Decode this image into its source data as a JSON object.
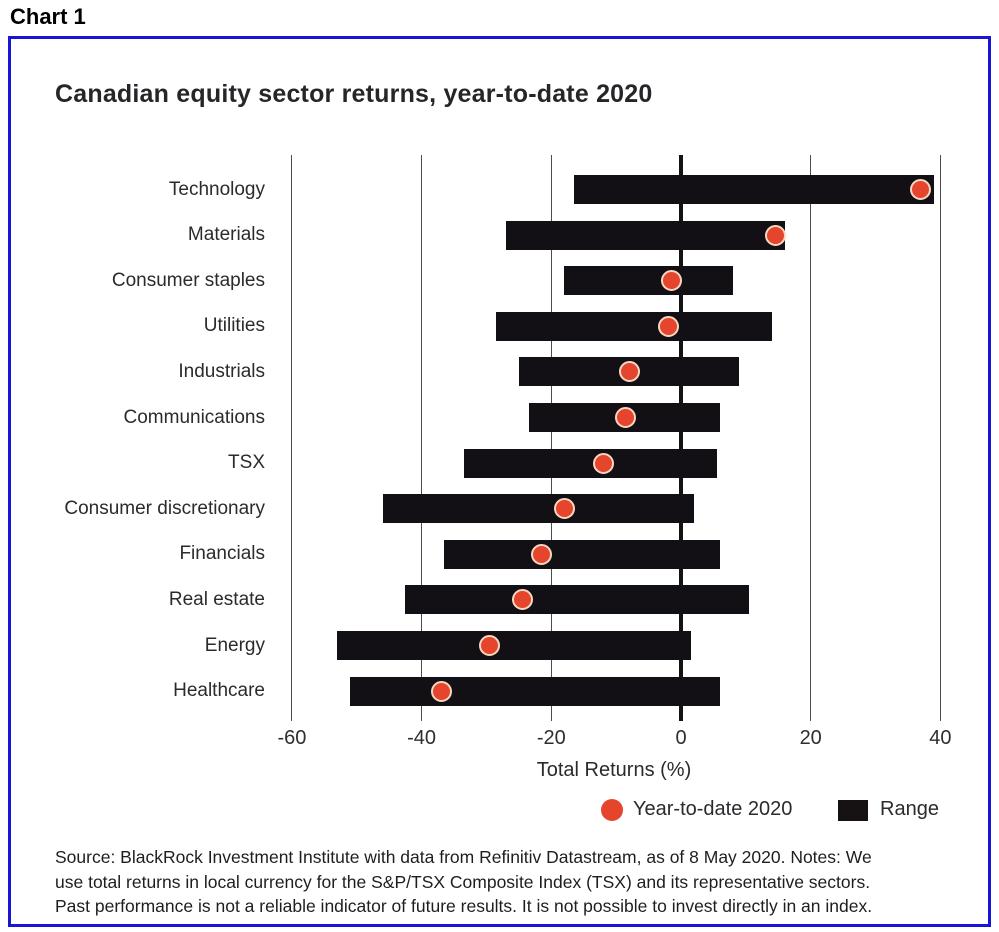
{
  "page": {
    "heading": "Chart 1"
  },
  "chart": {
    "title": "Canadian equity sector returns, year-to-date 2020",
    "xlabel": "Total Returns (%)",
    "legend": [
      {
        "label": "Year-to-date 2020",
        "marker": "dot"
      },
      {
        "label": "Range",
        "marker": "bar"
      }
    ],
    "source_lines": [
      "Source: BlackRock Investment Institute with data from Refinitiv Datastream, as of 8 May 2020. Notes: We",
      "use total returns in local currency for the S&P/TSX Composite Index (TSX) and its representative sectors.",
      "Past performance is not a reliable indicator of future results. It is not possible to invest directly in an index."
    ]
  },
  "chart_data": {
    "type": "bar",
    "subtype": "horizontal-range-bars-with-point-markers",
    "title": "Canadian equity sector returns, year-to-date 2020",
    "xlabel": "Total Returns (%)",
    "xlim": [
      -63,
      43
    ],
    "xticks": [
      -60,
      -40,
      -20,
      0,
      20,
      40
    ],
    "grid": "vertical",
    "legend_position": "bottom-right",
    "categories": [
      "Technology",
      "Materials",
      "Consumer staples",
      "Utilities",
      "Industrials",
      "Communications",
      "TSX",
      "Consumer discretionary",
      "Financials",
      "Real estate",
      "Energy",
      "Healthcare"
    ],
    "series": [
      {
        "name": "Range",
        "values": [
          [
            -16.5,
            39
          ],
          [
            -27,
            16
          ],
          [
            -18,
            8
          ],
          [
            -28.5,
            14
          ],
          [
            -25,
            9
          ],
          [
            -23.5,
            6
          ],
          [
            -33.5,
            5.5
          ],
          [
            -46,
            2
          ],
          [
            -36.5,
            6
          ],
          [
            -42.5,
            10.5
          ],
          [
            -53,
            1.5
          ],
          [
            -51,
            6
          ]
        ]
      },
      {
        "name": "Year-to-date 2020",
        "values": [
          37,
          14.5,
          -1.5,
          -2,
          -8,
          -8.5,
          -12,
          -18,
          -21.5,
          -24.5,
          -29.5,
          -37
        ]
      }
    ]
  },
  "colors": {
    "ytd_dot": "#e5452c",
    "dot_ring": "#f6d7c2",
    "range_bar": "#121014",
    "frame_border": "#1a15d6",
    "gridline": "#4c4c4e",
    "zero_line": "#131313",
    "text_dark": "#26262a"
  }
}
